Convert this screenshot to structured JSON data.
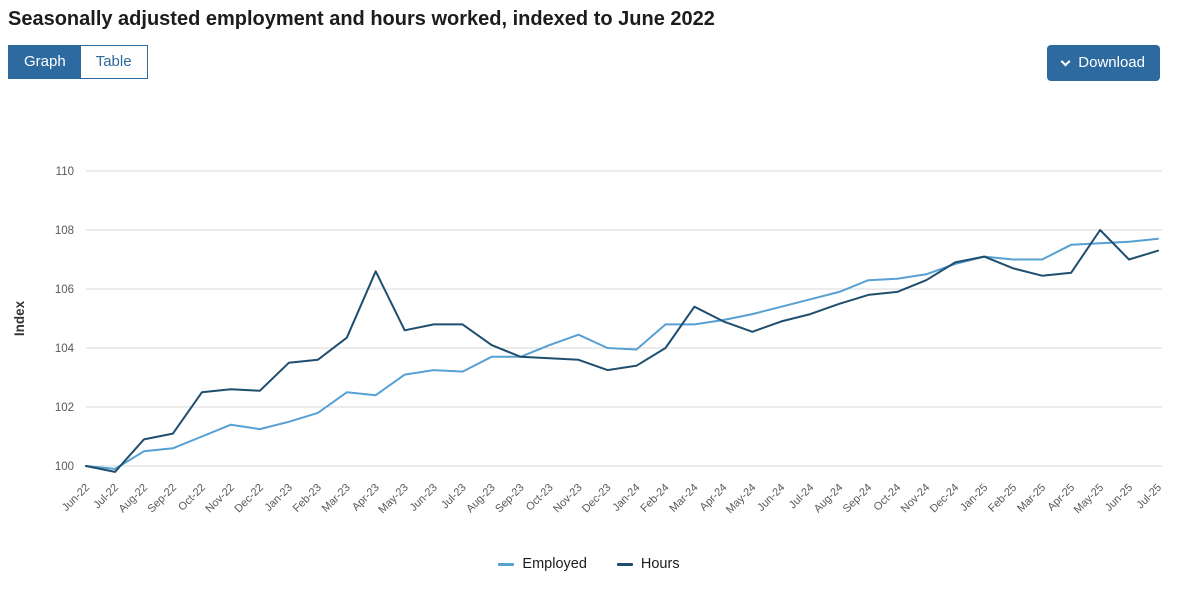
{
  "page": {
    "title": "Seasonally adjusted employment and hours worked, indexed to June 2022"
  },
  "tabs": [
    {
      "label": "Graph",
      "active": true
    },
    {
      "label": "Table",
      "active": false
    }
  ],
  "download": {
    "label": "Download"
  },
  "colors": {
    "accent_blue": "#2d6a9f",
    "gridline": "#d9d9d9",
    "tick_text": "#595959"
  },
  "chart_data": {
    "type": "line",
    "title": "Seasonally adjusted employment and hours worked, indexed to June 2022",
    "xlabel": "",
    "ylabel": "Index",
    "ylim": [
      99.5,
      110.5
    ],
    "yticks": [
      100,
      102,
      104,
      106,
      108,
      110
    ],
    "grid": "horizontal",
    "legend_position": "bottom",
    "categories": [
      "Jun-22",
      "Jul-22",
      "Aug-22",
      "Sep-22",
      "Oct-22",
      "Nov-22",
      "Dec-22",
      "Jan-23",
      "Feb-23",
      "Mar-23",
      "Apr-23",
      "May-23",
      "Jun-23",
      "Jul-23",
      "Aug-23",
      "Sep-23",
      "Oct-23",
      "Nov-23",
      "Dec-23",
      "Jan-24",
      "Feb-24",
      "Mar-24",
      "Apr-24",
      "May-24",
      "Jun-24",
      "Jul-24",
      "Aug-24",
      "Sep-24",
      "Oct-24",
      "Nov-24",
      "Dec-24",
      "Jan-25",
      "Feb-25",
      "Mar-25",
      "Apr-25",
      "May-25",
      "Jun-25",
      "Jul-25"
    ],
    "series": [
      {
        "name": "Employed",
        "color": "#57a0d4",
        "values": [
          100.0,
          99.9,
          100.5,
          100.6,
          101.0,
          101.4,
          101.25,
          101.5,
          101.8,
          102.5,
          102.4,
          103.1,
          103.25,
          103.2,
          103.7,
          103.7,
          104.1,
          104.45,
          104.0,
          103.95,
          104.8,
          104.8,
          104.95,
          105.15,
          105.4,
          105.65,
          105.9,
          106.3,
          106.35,
          106.5,
          106.85,
          107.1,
          107.0,
          107.0,
          107.5,
          107.55,
          107.6,
          107.7
        ]
      },
      {
        "name": "Hours",
        "color": "#1f4e6e",
        "values": [
          100.0,
          99.8,
          100.9,
          101.1,
          102.5,
          102.6,
          102.55,
          103.5,
          103.6,
          104.35,
          106.6,
          104.6,
          104.8,
          104.8,
          104.1,
          103.7,
          103.65,
          103.6,
          103.25,
          103.4,
          104.0,
          105.4,
          104.9,
          104.55,
          104.9,
          105.15,
          105.5,
          105.8,
          105.9,
          106.3,
          106.9,
          107.1,
          106.7,
          106.45,
          106.55,
          108.0,
          107.0,
          107.3
        ]
      }
    ]
  }
}
